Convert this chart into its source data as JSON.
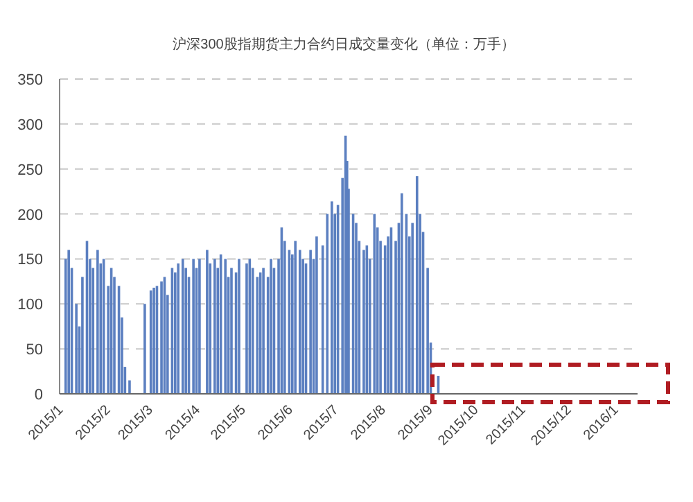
{
  "chart_data": {
    "type": "bar",
    "title": "沪深300股指期货主力合约日成交量变化（单位：万手）",
    "color": "#5b7fc0",
    "grid": "y",
    "ylim": [
      0,
      350
    ],
    "yticks": [
      0,
      50,
      100,
      150,
      200,
      250,
      300,
      350
    ],
    "xlim": [
      "2015-01-01",
      "2016-01-16"
    ],
    "xticks": [
      {
        "value": "2015-01-01",
        "label": "2015/1"
      },
      {
        "value": "2015-02-01",
        "label": "2015/2"
      },
      {
        "value": "2015-03-01",
        "label": "2015/3"
      },
      {
        "value": "2015-04-01",
        "label": "2015/4"
      },
      {
        "value": "2015-05-01",
        "label": "2015/5"
      },
      {
        "value": "2015-06-01",
        "label": "2015/6"
      },
      {
        "value": "2015-07-01",
        "label": "2015/7"
      },
      {
        "value": "2015-08-01",
        "label": "2015/8"
      },
      {
        "value": "2015-09-01",
        "label": "2015/9"
      },
      {
        "value": "2015-10-01",
        "label": "2015/10"
      },
      {
        "value": "2015-11-01",
        "label": "2015/11"
      },
      {
        "value": "2015-12-01",
        "label": "2015/12"
      },
      {
        "value": "2016-01-01",
        "label": "2016/1"
      }
    ],
    "x": [
      "2015-01-05",
      "2015-01-07",
      "2015-01-09",
      "2015-01-12",
      "2015-01-14",
      "2015-01-16",
      "2015-01-19",
      "2015-01-21",
      "2015-01-23",
      "2015-01-26",
      "2015-01-28",
      "2015-01-30",
      "2015-02-02",
      "2015-02-04",
      "2015-02-06",
      "2015-02-09",
      "2015-02-11",
      "2015-02-13",
      "2015-02-16",
      "2015-02-26",
      "2015-03-02",
      "2015-03-04",
      "2015-03-06",
      "2015-03-09",
      "2015-03-11",
      "2015-03-13",
      "2015-03-16",
      "2015-03-18",
      "2015-03-20",
      "2015-03-23",
      "2015-03-25",
      "2015-03-27",
      "2015-03-30",
      "2015-04-01",
      "2015-04-03",
      "2015-04-08",
      "2015-04-10",
      "2015-04-13",
      "2015-04-15",
      "2015-04-17",
      "2015-04-20",
      "2015-04-22",
      "2015-04-24",
      "2015-04-27",
      "2015-04-29",
      "2015-05-04",
      "2015-05-06",
      "2015-05-08",
      "2015-05-11",
      "2015-05-13",
      "2015-05-15",
      "2015-05-18",
      "2015-05-20",
      "2015-05-22",
      "2015-05-25",
      "2015-05-27",
      "2015-05-29",
      "2015-06-01",
      "2015-06-03",
      "2015-06-05",
      "2015-06-08",
      "2015-06-10",
      "2015-06-12",
      "2015-06-15",
      "2015-06-17",
      "2015-06-19",
      "2015-06-23",
      "2015-06-26",
      "2015-06-29",
      "2015-07-01",
      "2015-07-03",
      "2015-07-06",
      "2015-07-08",
      "2015-07-09",
      "2015-07-10",
      "2015-07-13",
      "2015-07-15",
      "2015-07-17",
      "2015-07-20",
      "2015-07-22",
      "2015-07-24",
      "2015-07-27",
      "2015-07-29",
      "2015-07-31",
      "2015-08-03",
      "2015-08-05",
      "2015-08-07",
      "2015-08-10",
      "2015-08-12",
      "2015-08-14",
      "2015-08-17",
      "2015-08-19",
      "2015-08-21",
      "2015-08-24",
      "2015-08-26",
      "2015-08-28",
      "2015-08-31",
      "2015-09-02",
      "2015-09-07"
    ],
    "values": [
      150,
      160,
      140,
      100,
      75,
      130,
      170,
      150,
      140,
      160,
      145,
      150,
      120,
      140,
      130,
      120,
      85,
      30,
      15,
      100,
      115,
      118,
      120,
      125,
      130,
      110,
      140,
      135,
      145,
      150,
      140,
      130,
      150,
      140,
      150,
      160,
      145,
      150,
      140,
      155,
      150,
      130,
      140,
      135,
      150,
      145,
      150,
      140,
      130,
      135,
      140,
      130,
      150,
      140,
      150,
      185,
      170,
      160,
      155,
      170,
      160,
      150,
      145,
      160,
      150,
      175,
      165,
      200,
      214,
      200,
      210,
      240,
      287,
      259,
      228,
      200,
      190,
      170,
      160,
      165,
      150,
      200,
      185,
      170,
      165,
      175,
      185,
      170,
      190,
      223,
      200,
      175,
      190,
      242,
      200,
      180,
      140,
      57,
      20
    ]
  }
}
